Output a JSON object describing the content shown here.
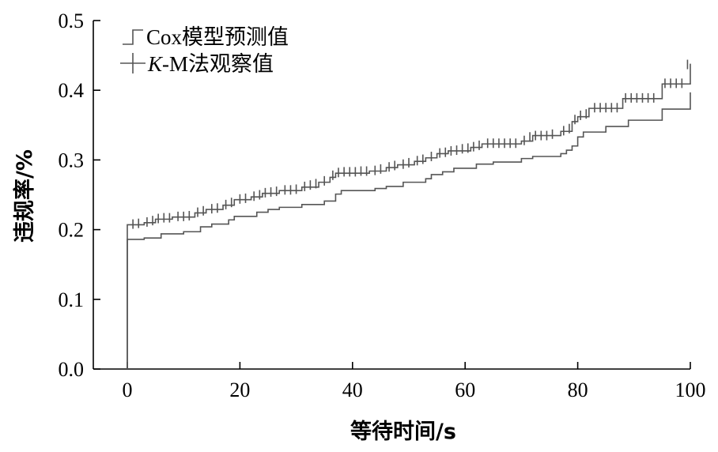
{
  "chart_data": {
    "type": "line",
    "step": true,
    "xlabel": "等待时间/s",
    "ylabel": "违规率/%",
    "xlim": [
      -6,
      100
    ],
    "ylim": [
      0,
      0.5
    ],
    "xticks": [
      0,
      20,
      40,
      60,
      80,
      100
    ],
    "xtick_labels": [
      "0",
      "20",
      "40",
      "60",
      "80",
      "100"
    ],
    "yticks": [
      0.0,
      0.1,
      0.2,
      0.3,
      0.4,
      0.5
    ],
    "ytick_labels": [
      "0.0",
      "0.1",
      "0.2",
      "0.3",
      "0.4",
      "0.5"
    ],
    "grid": false,
    "legend_position": "top-left",
    "series": [
      {
        "name": "Cox模型预测值",
        "legend_label": "Cox模型预测值",
        "color": "#555555",
        "marker": "none",
        "points": [
          [
            0,
            0.0
          ],
          [
            0,
            0.186
          ],
          [
            3,
            0.188
          ],
          [
            6,
            0.194
          ],
          [
            10,
            0.197
          ],
          [
            13,
            0.204
          ],
          [
            15,
            0.208
          ],
          [
            18,
            0.214
          ],
          [
            19,
            0.219
          ],
          [
            23,
            0.225
          ],
          [
            25,
            0.229
          ],
          [
            27,
            0.232
          ],
          [
            31,
            0.236
          ],
          [
            35,
            0.241
          ],
          [
            37,
            0.251
          ],
          [
            38,
            0.256
          ],
          [
            44,
            0.259
          ],
          [
            46,
            0.262
          ],
          [
            49,
            0.268
          ],
          [
            53,
            0.273
          ],
          [
            54,
            0.279
          ],
          [
            56,
            0.283
          ],
          [
            58,
            0.288
          ],
          [
            62,
            0.294
          ],
          [
            65,
            0.297
          ],
          [
            70,
            0.302
          ],
          [
            72,
            0.305
          ],
          [
            77,
            0.309
          ],
          [
            78,
            0.314
          ],
          [
            79,
            0.32
          ],
          [
            80,
            0.333
          ],
          [
            81,
            0.34
          ],
          [
            85,
            0.348
          ],
          [
            89,
            0.357
          ],
          [
            95,
            0.373
          ],
          [
            100,
            0.376
          ],
          [
            100,
            0.397
          ]
        ]
      },
      {
        "name": "K-M法观察值",
        "legend_label": "K-M法观察值",
        "legend_italic_part": "K",
        "legend_rest": "-M法观察值",
        "color": "#555555",
        "marker": "plus",
        "points": [
          [
            0,
            0.0
          ],
          [
            0,
            0.207
          ],
          [
            3,
            0.21
          ],
          [
            5,
            0.215
          ],
          [
            8,
            0.218
          ],
          [
            12,
            0.224
          ],
          [
            14,
            0.229
          ],
          [
            17,
            0.235
          ],
          [
            19,
            0.243
          ],
          [
            22,
            0.247
          ],
          [
            24,
            0.252
          ],
          [
            27,
            0.256
          ],
          [
            31,
            0.261
          ],
          [
            34,
            0.268
          ],
          [
            36,
            0.275
          ],
          [
            37,
            0.281
          ],
          [
            43,
            0.284
          ],
          [
            46,
            0.289
          ],
          [
            48,
            0.293
          ],
          [
            51,
            0.298
          ],
          [
            53,
            0.303
          ],
          [
            55,
            0.309
          ],
          [
            57,
            0.313
          ],
          [
            61,
            0.318
          ],
          [
            63,
            0.323
          ],
          [
            70,
            0.327
          ],
          [
            72,
            0.335
          ],
          [
            77,
            0.341
          ],
          [
            79,
            0.355
          ],
          [
            80,
            0.362
          ],
          [
            82,
            0.374
          ],
          [
            88,
            0.388
          ],
          [
            95,
            0.409
          ],
          [
            100,
            0.413
          ],
          [
            100,
            0.438
          ]
        ],
        "censor_marks": [
          [
            1,
            0.208
          ],
          [
            2,
            0.209
          ],
          [
            3.5,
            0.211
          ],
          [
            4.5,
            0.213
          ],
          [
            5.5,
            0.216
          ],
          [
            6.5,
            0.217
          ],
          [
            7.5,
            0.217
          ],
          [
            9,
            0.219
          ],
          [
            10,
            0.219
          ],
          [
            11,
            0.22
          ],
          [
            12.5,
            0.225
          ],
          [
            13.5,
            0.227
          ],
          [
            15,
            0.23
          ],
          [
            16,
            0.231
          ],
          [
            17.5,
            0.236
          ],
          [
            18.5,
            0.239
          ],
          [
            20,
            0.244
          ],
          [
            21,
            0.245
          ],
          [
            22.5,
            0.248
          ],
          [
            23.5,
            0.25
          ],
          [
            24.5,
            0.253
          ],
          [
            25.5,
            0.254
          ],
          [
            26.5,
            0.255
          ],
          [
            28,
            0.257
          ],
          [
            29,
            0.257
          ],
          [
            30,
            0.258
          ],
          [
            31.5,
            0.262
          ],
          [
            32.5,
            0.264
          ],
          [
            33.5,
            0.266
          ],
          [
            35,
            0.27
          ],
          [
            36.5,
            0.278
          ],
          [
            37.5,
            0.282
          ],
          [
            38.5,
            0.283
          ],
          [
            39.5,
            0.283
          ],
          [
            40.5,
            0.283
          ],
          [
            41.5,
            0.284
          ],
          [
            42.5,
            0.284
          ],
          [
            44,
            0.285
          ],
          [
            45,
            0.287
          ],
          [
            46.5,
            0.29
          ],
          [
            47.5,
            0.292
          ],
          [
            49,
            0.294
          ],
          [
            50,
            0.296
          ],
          [
            51.5,
            0.299
          ],
          [
            52.5,
            0.301
          ],
          [
            54,
            0.305
          ],
          [
            55.5,
            0.31
          ],
          [
            56.5,
            0.311
          ],
          [
            57.5,
            0.313
          ],
          [
            58.5,
            0.314
          ],
          [
            59.5,
            0.316
          ],
          [
            60.5,
            0.317
          ],
          [
            61.5,
            0.319
          ],
          [
            62.5,
            0.321
          ],
          [
            64,
            0.324
          ],
          [
            65,
            0.324
          ],
          [
            66,
            0.324
          ],
          [
            67,
            0.324
          ],
          [
            68,
            0.324
          ],
          [
            69,
            0.324
          ],
          [
            70.5,
            0.328
          ],
          [
            71.5,
            0.333
          ],
          [
            72.5,
            0.335
          ],
          [
            73.5,
            0.335
          ],
          [
            74.5,
            0.335
          ],
          [
            75.5,
            0.337
          ],
          [
            77.5,
            0.342
          ],
          [
            78.5,
            0.345
          ],
          [
            79.5,
            0.358
          ],
          [
            80.5,
            0.364
          ],
          [
            81.5,
            0.366
          ],
          [
            83,
            0.375
          ],
          [
            84,
            0.375
          ],
          [
            85,
            0.375
          ],
          [
            86,
            0.375
          ],
          [
            87,
            0.375
          ],
          [
            88.5,
            0.389
          ],
          [
            89.5,
            0.389
          ],
          [
            90.5,
            0.389
          ],
          [
            91.5,
            0.389
          ],
          [
            92.5,
            0.389
          ],
          [
            93.5,
            0.389
          ],
          [
            95.5,
            0.41
          ],
          [
            96.5,
            0.41
          ],
          [
            97.5,
            0.41
          ],
          [
            98.5,
            0.41
          ],
          [
            99.5,
            0.437
          ]
        ]
      }
    ]
  }
}
